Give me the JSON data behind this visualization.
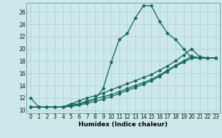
{
  "xlabel": "Humidex (Indice chaleur)",
  "bg_color": "#cce8ea",
  "grid_color": "#aacdd0",
  "line_color": "#1a6b5e",
  "xlim": [
    -0.5,
    23.5
  ],
  "ylim": [
    9.5,
    27.5
  ],
  "yticks": [
    10,
    12,
    14,
    16,
    18,
    20,
    22,
    24,
    26
  ],
  "xticks": [
    0,
    1,
    2,
    3,
    4,
    5,
    6,
    7,
    8,
    9,
    10,
    11,
    12,
    13,
    14,
    15,
    16,
    17,
    18,
    19,
    20,
    21,
    22,
    23
  ],
  "series1_y": [
    12.0,
    10.5,
    10.5,
    10.5,
    10.5,
    11.0,
    11.0,
    11.5,
    11.8,
    13.5,
    17.8,
    21.5,
    22.5,
    25.0,
    27.0,
    27.0,
    24.5,
    22.5,
    21.5,
    20.0,
    18.5,
    18.5,
    18.5,
    18.5
  ],
  "series2_y": [
    10.5,
    10.5,
    10.5,
    10.5,
    10.5,
    11.0,
    11.5,
    12.0,
    12.3,
    12.8,
    13.3,
    13.8,
    14.3,
    14.8,
    15.3,
    15.8,
    16.5,
    17.2,
    18.0,
    19.0,
    20.0,
    18.7,
    18.5,
    18.5
  ],
  "series3_y": [
    10.5,
    10.5,
    10.5,
    10.5,
    10.5,
    10.7,
    11.0,
    11.3,
    11.8,
    12.2,
    12.5,
    13.0,
    13.5,
    14.0,
    14.5,
    15.0,
    15.7,
    16.5,
    17.3,
    18.0,
    18.8,
    18.5,
    18.5,
    18.5
  ],
  "series4_y": [
    10.5,
    10.5,
    10.5,
    10.5,
    10.5,
    10.6,
    10.8,
    11.1,
    11.4,
    11.8,
    12.2,
    12.7,
    13.2,
    13.7,
    14.2,
    14.8,
    15.5,
    16.3,
    17.2,
    17.8,
    18.5,
    18.5,
    18.5,
    18.5
  ],
  "marker": "D",
  "marker_size": 2.0,
  "line_width": 1.0,
  "font_size_label": 6.5,
  "font_size_tick": 5.5
}
